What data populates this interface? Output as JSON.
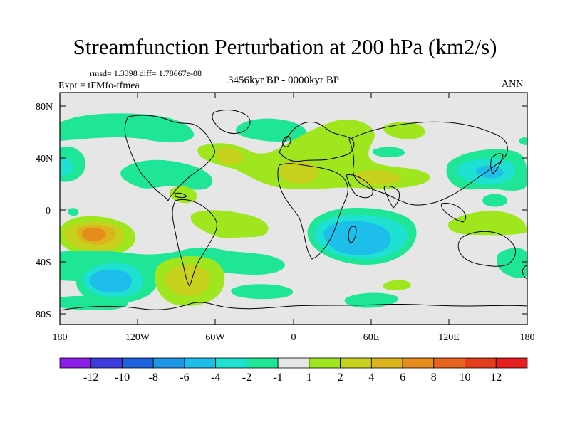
{
  "title": "Streamfunction Perturbation at 200 hPa (km2/s)",
  "stats": "rmsd= 1.3398 diff= 1.78667e-08",
  "period": "3456kyr BP - 0000kyr BP",
  "experiment": "Expt = tFMfo-tfmea",
  "season": "ANN",
  "y_ticks": [
    "80N",
    "40N",
    "0",
    "40S",
    "80S"
  ],
  "x_ticks": [
    "180",
    "120W",
    "60W",
    "0",
    "60E",
    "120E",
    "180"
  ],
  "colorbar": {
    "labels": [
      "-12",
      "-10",
      "-8",
      "-6",
      "-4",
      "-2",
      "-1",
      "1",
      "2",
      "4",
      "6",
      "8",
      "10",
      "12"
    ],
    "colors": [
      "#8a1ee6",
      "#3c3cdc",
      "#1e64dc",
      "#1e96e6",
      "#1ebeeb",
      "#1ee1d2",
      "#1ee696",
      "#e6e6e6",
      "#a0e61e",
      "#c8d21e",
      "#dcb41e",
      "#e68c1e",
      "#e6641e",
      "#e63c1e",
      "#e61e1e"
    ]
  },
  "legend_colors": {
    "neg1": "#1ee696",
    "neg2": "#1ee1d2",
    "neg4": "#1ebeeb",
    "pos1": "#a0e61e",
    "pos2": "#c8d21e",
    "pos4": "#dcb41e",
    "pos6": "#e68c1e",
    "background": "#e6e6e6"
  }
}
